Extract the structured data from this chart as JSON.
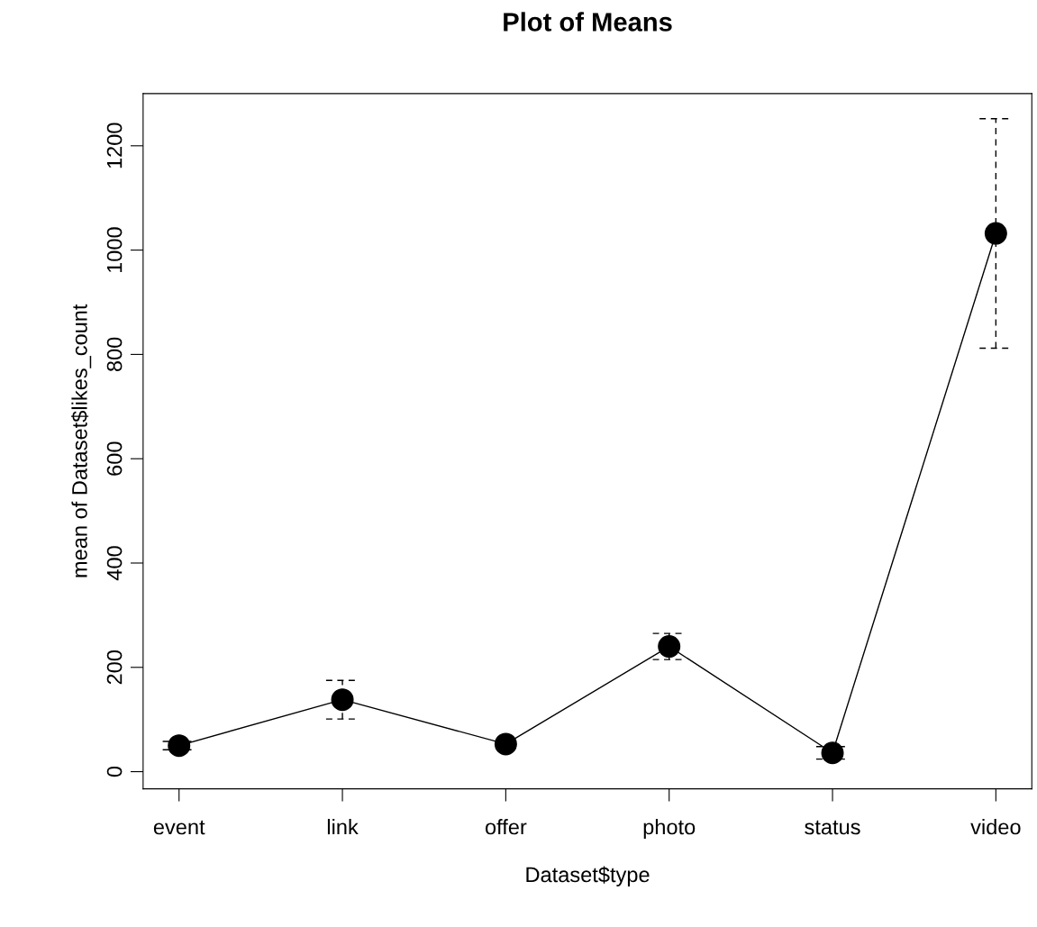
{
  "chart_data": {
    "type": "line",
    "title": "Plot of Means",
    "xlabel": "Dataset$type",
    "ylabel": "mean of Dataset$likes_count",
    "categories": [
      "event",
      "link",
      "offer",
      "photo",
      "status",
      "video"
    ],
    "series": [
      {
        "color": "#000000",
        "values": [
          50,
          138,
          53,
          240,
          36,
          1032
        ],
        "errors": [
          8,
          37,
          null,
          25,
          12,
          220
        ]
      }
    ],
    "ylim": [
      -33,
      1300
    ],
    "yticks": [
      0,
      200,
      400,
      600,
      800,
      1000,
      1200
    ],
    "marker": "circle",
    "line_style": "solid",
    "grid": false,
    "legend": false
  }
}
